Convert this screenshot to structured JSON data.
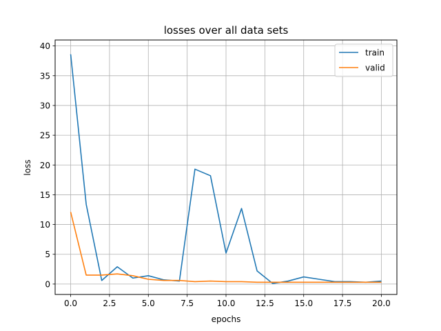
{
  "chart_data": {
    "type": "line",
    "title": "losses over all data sets",
    "xlabel": "epochs",
    "ylabel": "loss",
    "xlim": [
      -1,
      21
    ],
    "ylim": [
      -1.75,
      41
    ],
    "xticks": [
      0.0,
      2.5,
      5.0,
      7.5,
      10.0,
      12.5,
      15.0,
      17.5,
      20.0
    ],
    "xtick_labels": [
      "0.0",
      "2.5",
      "5.0",
      "7.5",
      "10.0",
      "12.5",
      "15.0",
      "17.5",
      "20.0"
    ],
    "yticks": [
      0,
      5,
      10,
      15,
      20,
      25,
      30,
      35,
      40
    ],
    "ytick_labels": [
      "0",
      "5",
      "10",
      "15",
      "20",
      "25",
      "30",
      "35",
      "40"
    ],
    "grid": true,
    "legend_position": "top-right",
    "x": [
      0,
      1,
      2,
      3,
      4,
      5,
      6,
      7,
      8,
      9,
      10,
      11,
      12,
      13,
      14,
      15,
      16,
      17,
      18,
      19,
      20
    ],
    "series": [
      {
        "name": "train",
        "color": "#1f77b4",
        "values": [
          38.6,
          13.4,
          0.6,
          2.9,
          1.0,
          1.4,
          0.7,
          0.5,
          19.3,
          18.2,
          5.2,
          12.7,
          2.2,
          0.1,
          0.5,
          1.2,
          0.8,
          0.4,
          0.4,
          0.3,
          0.5
        ]
      },
      {
        "name": "valid",
        "color": "#ff7f0e",
        "values": [
          12.1,
          1.5,
          1.5,
          1.7,
          1.4,
          0.8,
          0.6,
          0.6,
          0.4,
          0.5,
          0.4,
          0.4,
          0.3,
          0.3,
          0.3,
          0.3,
          0.3,
          0.3,
          0.3,
          0.3,
          0.3
        ]
      }
    ]
  }
}
